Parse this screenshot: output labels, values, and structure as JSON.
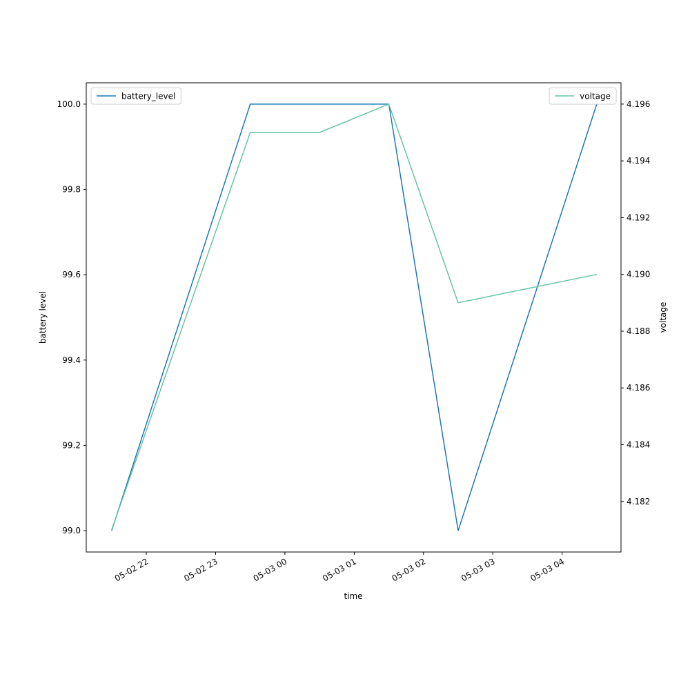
{
  "chart_data": {
    "type": "line",
    "x": [
      "05-02 21:30",
      "05-02 23:30",
      "05-03 00:30",
      "05-03 01:30",
      "05-03 02:30",
      "05-03 04:30"
    ],
    "xlim": [
      "05-02 21:08",
      "05-03 04:51"
    ],
    "xticks": [
      "05-02 22",
      "05-02 23",
      "05-03 00",
      "05-03 01",
      "05-03 02",
      "05-03 03",
      "05-03 04"
    ],
    "xlabel": "time",
    "ylabel": "battery level",
    "y2label": "voltage",
    "ylim": [
      98.95,
      100.05
    ],
    "yticks": [
      {
        "value": 99,
        "label": "99.0"
      },
      {
        "value": 99.2,
        "label": "99.2"
      },
      {
        "value": 99.4,
        "label": "99.4"
      },
      {
        "value": 99.6,
        "label": "99.6"
      },
      {
        "value": 99.8,
        "label": "99.8"
      },
      {
        "value": 100,
        "label": "100.0"
      }
    ],
    "y2lim": [
      4.18022,
      4.19675
    ],
    "y2ticks": [
      4.182,
      4.184,
      4.186,
      4.188,
      {
        "value": 4.19,
        "label": "4.190"
      },
      4.192,
      4.194,
      4.196
    ],
    "series": [
      {
        "name": "battery_level",
        "color": "#1f77b4",
        "values": [
          99,
          100,
          100,
          100,
          99,
          100
        ],
        "legend": "upper left"
      },
      {
        "name": "voltage",
        "color": "#66c2a5",
        "axis": "y2",
        "values": [
          4.181,
          4.195,
          4.195,
          4.196,
          4.189,
          4.19
        ],
        "legend": "upper right"
      }
    ]
  }
}
